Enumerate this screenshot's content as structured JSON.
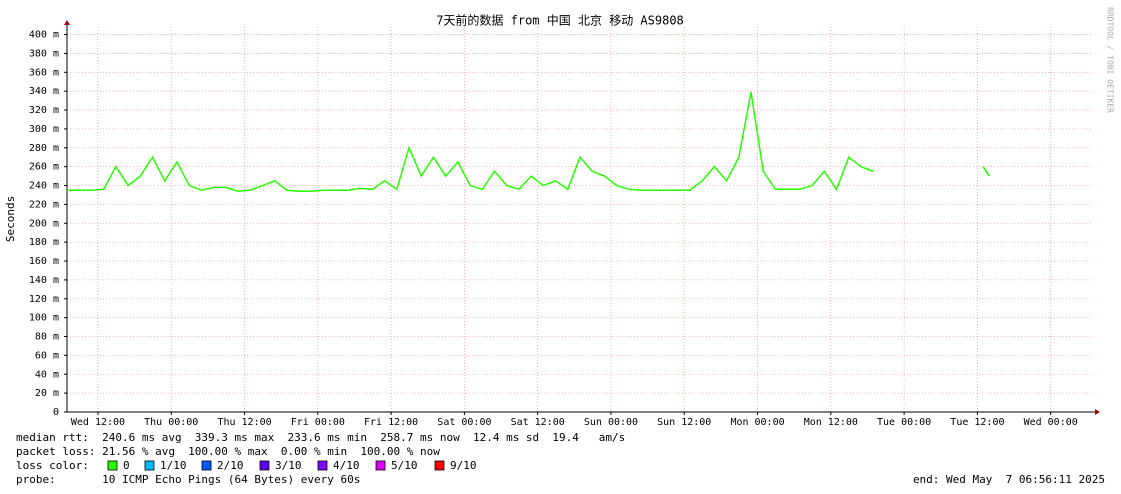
{
  "chart_data": {
    "type": "line",
    "title": "7天前的数据 from 中国 北京 移动 AS9808",
    "y_label": "Seconds",
    "side_text": "RRDTOOL / TOBI OETIKER",
    "x": [
      0,
      2,
      4,
      6,
      8,
      10,
      12,
      14,
      16,
      18,
      20,
      22,
      24,
      26,
      28,
      30,
      32,
      34,
      36,
      38,
      40,
      42,
      44,
      46,
      48,
      50,
      52,
      54,
      56,
      58,
      60,
      62,
      64,
      66,
      68,
      70,
      72,
      74,
      76,
      78,
      80,
      82,
      84,
      86,
      88,
      90,
      92,
      94,
      96,
      98,
      100,
      102,
      104,
      106,
      108,
      110,
      112,
      114,
      116,
      118,
      120,
      122,
      124,
      126,
      128,
      130,
      132,
      134,
      150,
      151
    ],
    "series": [
      {
        "name": "0",
        "color": "#26ff00",
        "values": [
          235,
          235,
          235,
          236,
          260,
          240,
          250,
          270,
          245,
          265,
          240,
          235,
          238,
          238,
          234,
          235,
          240,
          245,
          235,
          234,
          234,
          235,
          235,
          235,
          237,
          236,
          245,
          236,
          280,
          250,
          270,
          250,
          265,
          240,
          236,
          255,
          240,
          236,
          250,
          240,
          245,
          236,
          270,
          255,
          250,
          240,
          236,
          235,
          235,
          235,
          235,
          235,
          245,
          260,
          245,
          270,
          339,
          255,
          236,
          236,
          236,
          240,
          255,
          236,
          270,
          260,
          255,
          null,
          260,
          250
        ]
      }
    ],
    "xlim": [
      0,
      168
    ],
    "xticks": [
      {
        "value": 5.07,
        "label": "Wed 12:00"
      },
      {
        "value": 17.07,
        "label": "Thu 00:00"
      },
      {
        "value": 29.07,
        "label": "Thu 12:00"
      },
      {
        "value": 41.07,
        "label": "Fri 00:00"
      },
      {
        "value": 53.07,
        "label": "Fri 12:00"
      },
      {
        "value": 65.07,
        "label": "Sat 00:00"
      },
      {
        "value": 77.07,
        "label": "Sat 12:00"
      },
      {
        "value": 89.07,
        "label": "Sun 00:00"
      },
      {
        "value": 101.07,
        "label": "Sun 12:00"
      },
      {
        "value": 113.07,
        "label": "Mon 00:00"
      },
      {
        "value": 125.07,
        "label": "Mon 12:00"
      },
      {
        "value": 137.07,
        "label": "Tue 00:00"
      },
      {
        "value": 149.07,
        "label": "Tue 12:00"
      },
      {
        "value": 161.07,
        "label": "Wed 00:00"
      }
    ],
    "ylim": [
      0,
      408
    ],
    "yticks": [
      0,
      {
        "value": 20,
        "label": "20 m"
      },
      {
        "value": 40,
        "label": "40 m"
      },
      {
        "value": 60,
        "label": "60 m"
      },
      {
        "value": 80,
        "label": "80 m"
      },
      {
        "value": 100,
        "label": "100 m"
      },
      {
        "value": 120,
        "label": "120 m"
      },
      {
        "value": 140,
        "label": "140 m"
      },
      {
        "value": 160,
        "label": "160 m"
      },
      {
        "value": 180,
        "label": "180 m"
      },
      {
        "value": 200,
        "label": "200 m"
      },
      {
        "value": 220,
        "label": "220 m"
      },
      {
        "value": 240,
        "label": "240 m"
      },
      {
        "value": 260,
        "label": "260 m"
      },
      {
        "value": 280,
        "label": "280 m"
      },
      {
        "value": 300,
        "label": "300 m"
      },
      {
        "value": 320,
        "label": "320 m"
      },
      {
        "value": 340,
        "label": "340 m"
      },
      {
        "value": 360,
        "label": "360 m"
      },
      {
        "value": 380,
        "label": "380 m"
      },
      {
        "value": 400,
        "label": "400 m"
      }
    ],
    "grid": true,
    "stats": {
      "median": "median rtt:  240.6 ms avg  339.3 ms max  233.6 ms min  258.7 ms now  12.4 ms sd  19.4   am/s",
      "loss": "packet loss: 21.56 % avg  100.00 % max  0.00 % min  100.00 % now",
      "loss_color": "loss color:",
      "probe": "probe:       10 ICMP Echo Pings (64 Bytes) every 60s",
      "end": "end: Wed May  7 06:56:11 2025"
    },
    "loss_legend": [
      {
        "label": "0",
        "color": "#26ff00"
      },
      {
        "label": "1/10",
        "color": "#00b8ff"
      },
      {
        "label": "2/10",
        "color": "#0059ff"
      },
      {
        "label": "3/10",
        "color": "#5e00ff"
      },
      {
        "label": "4/10",
        "color": "#7e00ff"
      },
      {
        "label": "5/10",
        "color": "#dd00ff"
      },
      {
        "label": "9/10",
        "color": "#ff0000"
      }
    ]
  }
}
